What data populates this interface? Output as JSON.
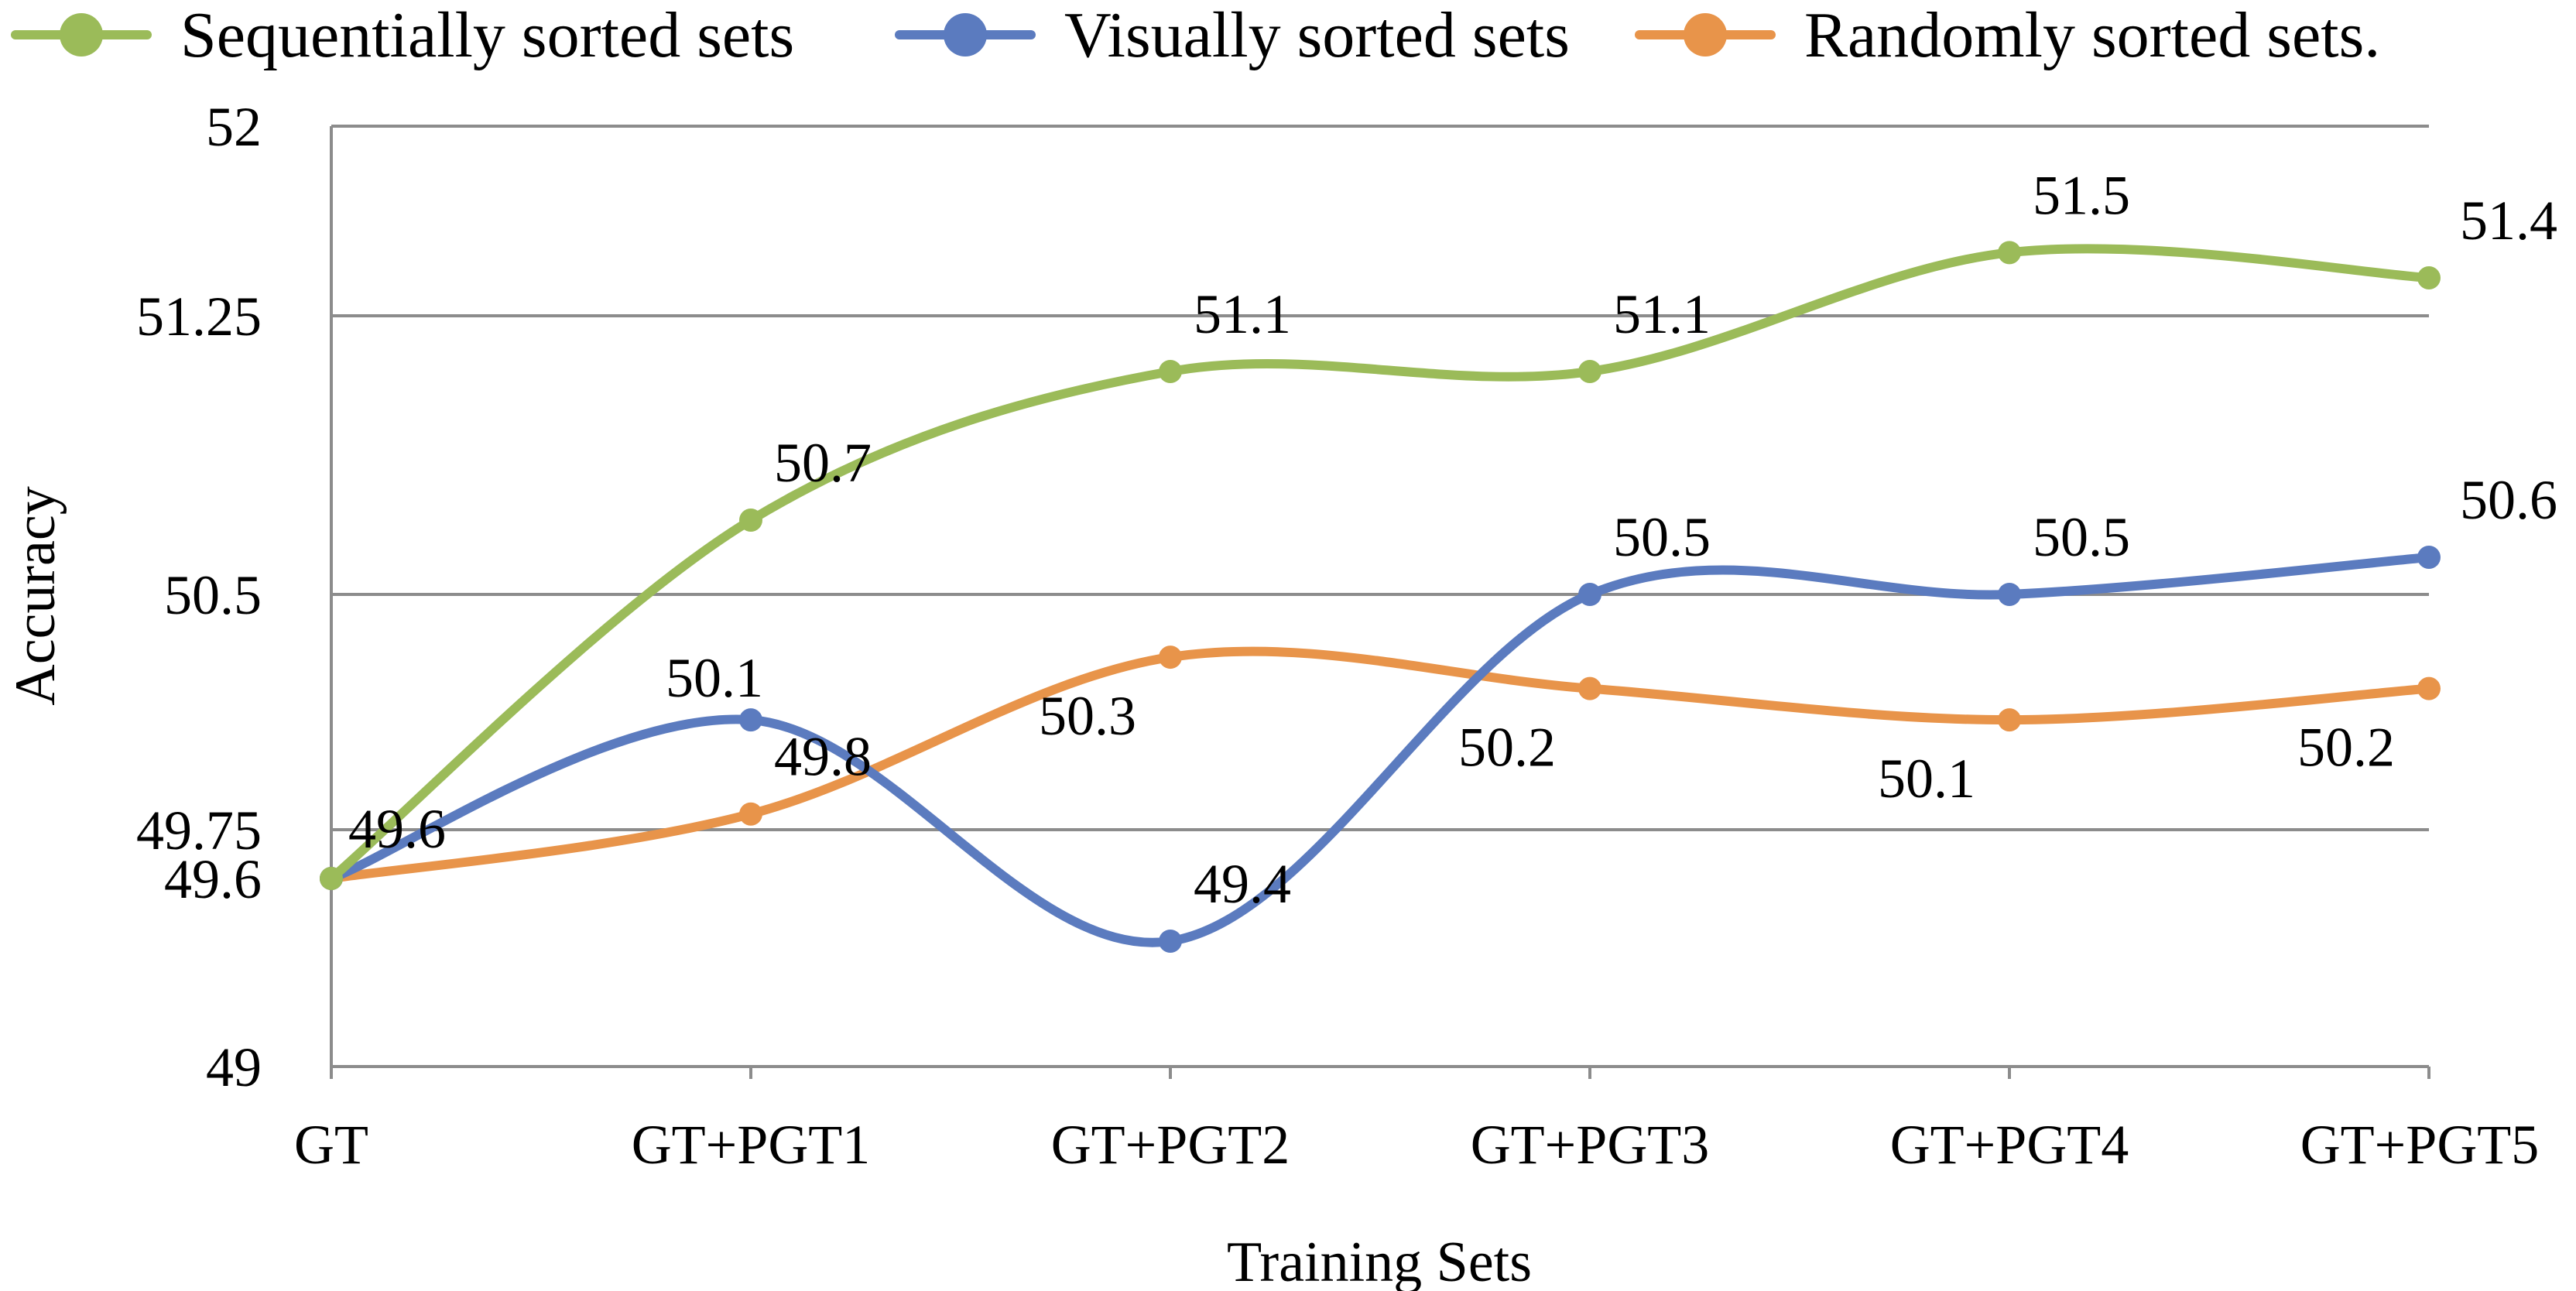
{
  "chart_data": {
    "type": "line",
    "smooth": true,
    "xlabel": "Training Sets",
    "ylabel": "Accuracy",
    "categories": [
      "GT",
      "GT+PGT1",
      "GT+PGT2",
      "GT+PGT3",
      "GT+PGT4",
      "GT+PGT5"
    ],
    "y_ticks": [
      "49",
      "49.6",
      "49.75",
      "50.5",
      "51.25",
      "52"
    ],
    "grid": true,
    "legend_position": "top",
    "series": [
      {
        "name": "Sequentially sorted sets",
        "color": "#9bbb59",
        "values": [
          49.6,
          50.7,
          51.1,
          51.1,
          51.5,
          51.4
        ],
        "labels": [
          "49.6",
          "50.7",
          "51.1",
          "51.1",
          "51.5",
          "51.4"
        ]
      },
      {
        "name": "Visually sorted sets",
        "color": "#5b7bbf",
        "values": [
          49.6,
          50.1,
          49.4,
          50.5,
          50.5,
          50.6
        ],
        "labels": [
          "",
          "50.1",
          "49.4",
          "50.5",
          "50.5",
          "50.6"
        ]
      },
      {
        "name": "Randomly sorted sets.",
        "color": "#e8944a",
        "values": [
          49.6,
          49.8,
          50.3,
          50.2,
          50.1,
          50.2
        ],
        "labels": [
          "",
          "49.8",
          "50.3",
          "50.2",
          "50.1",
          "50.2"
        ]
      }
    ]
  }
}
